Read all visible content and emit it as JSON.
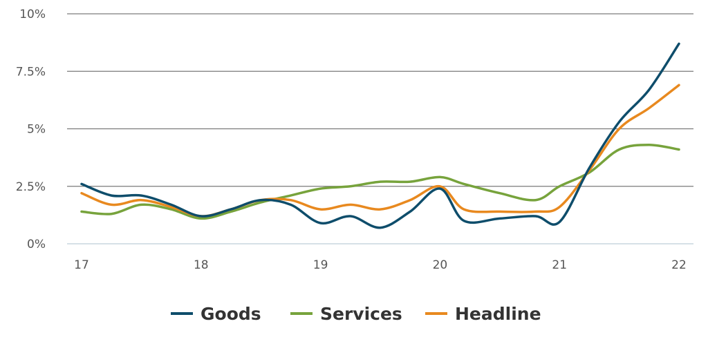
{
  "chart_data": {
    "type": "line",
    "title": "",
    "xlabel": "",
    "ylabel": "",
    "x_ticks": [
      "17",
      "18",
      "19",
      "20",
      "21",
      "22"
    ],
    "y_ticks": [
      "0%",
      "2.5%",
      "5%",
      "7.5%",
      "10%"
    ],
    "y_tick_values": [
      0,
      2.5,
      5,
      7.5,
      10
    ],
    "ylim": [
      0,
      10
    ],
    "xlim": [
      17,
      22
    ],
    "grid": "horizontal",
    "legend_position": "bottom",
    "series": [
      {
        "name": "Goods",
        "color": "#0e4d6b",
        "x": [
          17,
          17.25,
          17.5,
          17.75,
          18,
          18.25,
          18.5,
          18.75,
          19,
          19.25,
          19.5,
          19.75,
          20,
          20.2,
          20.5,
          20.8,
          21,
          21.25,
          21.5,
          21.75,
          22
        ],
        "y": [
          2.6,
          2.1,
          2.1,
          1.7,
          1.2,
          1.5,
          1.9,
          1.7,
          0.9,
          1.2,
          0.7,
          1.4,
          2.4,
          1.0,
          1.1,
          1.2,
          0.95,
          3.3,
          5.3,
          6.7,
          8.7
        ]
      },
      {
        "name": "Services",
        "color": "#77a33c",
        "x": [
          17,
          17.25,
          17.5,
          17.75,
          18,
          18.25,
          18.5,
          18.75,
          19,
          19.25,
          19.5,
          19.75,
          20,
          20.2,
          20.5,
          20.8,
          21,
          21.25,
          21.5,
          21.75,
          22
        ],
        "y": [
          1.4,
          1.3,
          1.7,
          1.5,
          1.1,
          1.4,
          1.8,
          2.1,
          2.4,
          2.5,
          2.7,
          2.7,
          2.9,
          2.6,
          2.2,
          1.9,
          2.5,
          3.1,
          4.1,
          4.3,
          4.1
        ]
      },
      {
        "name": "Headline",
        "color": "#e8891f",
        "x": [
          17,
          17.25,
          17.5,
          17.75,
          18,
          18.25,
          18.5,
          18.75,
          19,
          19.25,
          19.5,
          19.75,
          20,
          20.2,
          20.5,
          20.8,
          21,
          21.25,
          21.5,
          21.75,
          22
        ],
        "y": [
          2.2,
          1.7,
          1.9,
          1.6,
          1.2,
          1.5,
          1.9,
          1.9,
          1.5,
          1.7,
          1.5,
          1.9,
          2.5,
          1.5,
          1.4,
          1.4,
          1.6,
          3.2,
          5.0,
          5.9,
          6.9
        ]
      }
    ]
  }
}
